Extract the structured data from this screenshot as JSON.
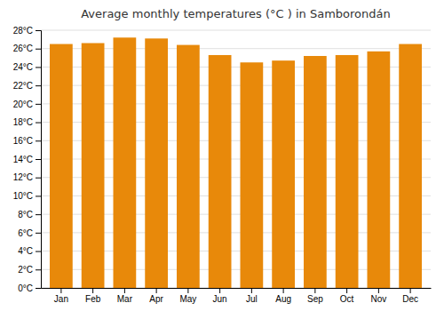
{
  "chart_data": {
    "type": "bar",
    "title": "Average monthly temperatures (°C ) in Samborondán",
    "categories": [
      "Jan",
      "Feb",
      "Mar",
      "Apr",
      "May",
      "Jun",
      "Jul",
      "Aug",
      "Sep",
      "Oct",
      "Nov",
      "Dec"
    ],
    "values": [
      26.5,
      26.6,
      27.2,
      27.1,
      26.4,
      25.3,
      24.5,
      24.7,
      25.2,
      25.3,
      25.7,
      26.5
    ],
    "color": "#E8890A",
    "ylim": [
      0,
      28
    ],
    "yticks": [
      {
        "value": 0,
        "label": "0°C"
      },
      {
        "value": 2,
        "label": "2°C"
      },
      {
        "value": 4,
        "label": "4°C"
      },
      {
        "value": 6,
        "label": "6°C"
      },
      {
        "value": 8,
        "label": "8°C"
      },
      {
        "value": 10,
        "label": "10°C"
      },
      {
        "value": 12,
        "label": "12°C"
      },
      {
        "value": 14,
        "label": "14°C"
      },
      {
        "value": 16,
        "label": "16°C"
      },
      {
        "value": 18,
        "label": "18°C"
      },
      {
        "value": 20,
        "label": "20°C"
      },
      {
        "value": 22,
        "label": "22°C"
      },
      {
        "value": 24,
        "label": "24°C"
      },
      {
        "value": 26,
        "label": "26°C"
      },
      {
        "value": 28,
        "label": "28°C"
      }
    ],
    "grid": true
  }
}
